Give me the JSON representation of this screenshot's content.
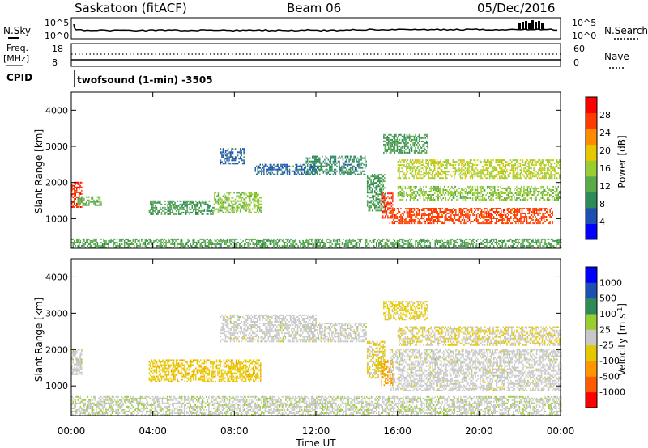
{
  "header": {
    "radar": "Saskatoon (fitACF)",
    "beam": "Beam 06",
    "date": "05/Dec/2016"
  },
  "top_panels": {
    "nsky_label": "N.Sky",
    "nsky_ticks": [
      "10^5",
      "10^0"
    ],
    "nsearch_label": "N.Search",
    "nsearch_ticks": [
      "10^5",
      "10^0"
    ],
    "freq_label": "Freq.",
    "freq_unit": "[MHz]",
    "freq_ticks": [
      "18",
      "8"
    ],
    "nave_label": "Nave",
    "nave_ticks": [
      "60",
      "0"
    ],
    "cpid_label": "CPID",
    "cpid_text": "twofsound (1-min) -3505"
  },
  "axes": {
    "ylabel": "Slant Range [km]",
    "xlabel": "Time UT",
    "yticks": [
      "4000",
      "3000",
      "2000",
      "1000"
    ],
    "xticks": [
      "00:00",
      "04:00",
      "08:00",
      "12:00",
      "16:00",
      "20:00",
      "00:00"
    ]
  },
  "chart_data": [
    {
      "type": "heatmap",
      "title": "",
      "panel": "power",
      "xlabel": "Time UT",
      "ylabel": "Slant Range [km]",
      "xlim": [
        0,
        24
      ],
      "ylim": [
        180,
        4500
      ],
      "colorbar": {
        "label": "Power [dB]",
        "ticks": [
          "28",
          "24",
          "20",
          "16",
          "12",
          "8",
          "4"
        ],
        "range": [
          0,
          30
        ],
        "colors": [
          "#0000ff",
          "#1e50b4",
          "#2e8b57",
          "#5aaa4a",
          "#9acd32",
          "#e6c800",
          "#ff8c00",
          "#ff3c00",
          "#ff0000"
        ]
      },
      "regions": [
        {
          "t": [
            0.0,
            0.5
          ],
          "r": [
            1300,
            2000
          ],
          "level": 26
        },
        {
          "t": [
            0.3,
            1.5
          ],
          "r": [
            1350,
            1600
          ],
          "level": 12
        },
        {
          "t": [
            3.8,
            7.0
          ],
          "r": [
            1100,
            1500
          ],
          "level": 10
        },
        {
          "t": [
            7.0,
            9.3
          ],
          "r": [
            1150,
            1700
          ],
          "level": 14
        },
        {
          "t": [
            7.3,
            8.5
          ],
          "r": [
            2500,
            2950
          ],
          "level": 6
        },
        {
          "t": [
            9.0,
            12.0
          ],
          "r": [
            2200,
            2500
          ],
          "level": 6
        },
        {
          "t": [
            11.5,
            14.5
          ],
          "r": [
            2200,
            2700
          ],
          "level": 8
        },
        {
          "t": [
            14.5,
            15.4
          ],
          "r": [
            1200,
            2200
          ],
          "level": 10
        },
        {
          "t": [
            15.2,
            15.8
          ],
          "r": [
            1000,
            1700
          ],
          "level": 26
        },
        {
          "t": [
            15.6,
            23.6
          ],
          "r": [
            850,
            1300
          ],
          "level": 25
        },
        {
          "t": [
            16.0,
            24.0
          ],
          "r": [
            1500,
            1900
          ],
          "level": 14
        },
        {
          "t": [
            16.0,
            24.0
          ],
          "r": [
            2100,
            2600
          ],
          "level": 16
        },
        {
          "t": [
            15.3,
            17.5
          ],
          "r": [
            2800,
            3300
          ],
          "level": 10
        },
        {
          "t": [
            0.0,
            24.0
          ],
          "r": [
            180,
            420
          ],
          "level": 11
        }
      ]
    },
    {
      "type": "heatmap",
      "title": "",
      "panel": "velocity",
      "xlabel": "Time UT",
      "ylabel": "Slant Range [km]",
      "xlim": [
        0,
        24
      ],
      "ylim": [
        180,
        4500
      ],
      "colorbar": {
        "label": "Velocity [m s^-1]",
        "ticks": [
          "1000",
          "500",
          "100",
          "25",
          "-25",
          "-100",
          "-500",
          "-1000"
        ],
        "range": [
          -1000,
          1000
        ],
        "colors": [
          "#ff0000",
          "#ff5a00",
          "#ff9600",
          "#e6c800",
          "#c8c8c8",
          "#9acd32",
          "#2e8b57",
          "#1e50b4",
          "#0000ff"
        ]
      },
      "regions": [
        {
          "t": [
            0.0,
            0.5
          ],
          "r": [
            1300,
            2000
          ],
          "level": 25
        },
        {
          "t": [
            3.8,
            9.3
          ],
          "r": [
            1100,
            1700
          ],
          "level": -250
        },
        {
          "t": [
            7.3,
            12.0
          ],
          "r": [
            2200,
            2950
          ],
          "level": 0
        },
        {
          "t": [
            11.5,
            14.5
          ],
          "r": [
            2200,
            2700
          ],
          "level": 0
        },
        {
          "t": [
            14.5,
            15.4
          ],
          "r": [
            1200,
            2200
          ],
          "level": -150
        },
        {
          "t": [
            15.2,
            15.8
          ],
          "r": [
            1000,
            1700
          ],
          "level": -400
        },
        {
          "t": [
            15.6,
            24.0
          ],
          "r": [
            850,
            2000
          ],
          "level": 0
        },
        {
          "t": [
            16.0,
            24.0
          ],
          "r": [
            2100,
            2600
          ],
          "level": -100
        },
        {
          "t": [
            15.3,
            17.5
          ],
          "r": [
            2800,
            3300
          ],
          "level": -200
        },
        {
          "t": [
            0.0,
            24.0
          ],
          "r": [
            180,
            700
          ],
          "level": 60
        }
      ]
    }
  ]
}
